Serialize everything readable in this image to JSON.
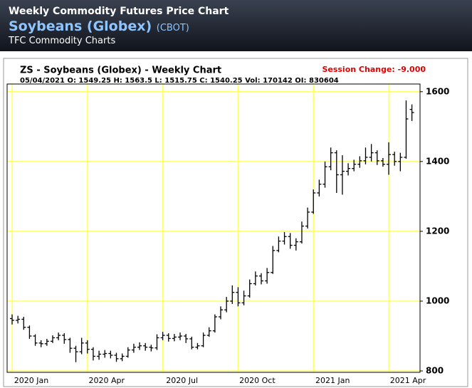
{
  "header": {
    "title": "Weekly Commodity Futures Price Chart",
    "commodity": "Soybeans (Globex)",
    "exchange": "(CBOT)",
    "source": "TFC Commodity Charts"
  },
  "chart_data": {
    "type": "ohlc",
    "title": "ZS - Soybeans (Globex) - Weekly Chart",
    "subtitle": "05/04/2021 O: 1549.25 H: 1563.5 L: 1515.75 C: 1540.25 Vol: 170142 OI: 830604",
    "annotation": "Session Change: -9.000",
    "color": "#000000",
    "grid_color": "#ffff66",
    "grid": true,
    "open": [
      950,
      945,
      948,
      925,
      900,
      880,
      878,
      885,
      895,
      902,
      890,
      865,
      855,
      880,
      862,
      842,
      848,
      850,
      845,
      835,
      842,
      860,
      868,
      872,
      868,
      866,
      895,
      902,
      893,
      897,
      900,
      892,
      868,
      872,
      902,
      915,
      955,
      975,
      1000,
      1025,
      995,
      1015,
      1050,
      1072,
      1058,
      1082,
      1145,
      1172,
      1185,
      1160,
      1170,
      1215,
      1255,
      1310,
      1335,
      1385,
      1425,
      1362,
      1372,
      1380,
      1392,
      1402,
      1412,
      1425,
      1402,
      1392,
      1420,
      1400,
      1412,
      1549.25
    ],
    "high": [
      962,
      958,
      955,
      930,
      905,
      888,
      892,
      902,
      910,
      908,
      895,
      872,
      895,
      888,
      868,
      858,
      860,
      858,
      852,
      850,
      868,
      878,
      882,
      880,
      875,
      905,
      912,
      908,
      906,
      910,
      906,
      898,
      880,
      910,
      925,
      962,
      985,
      1012,
      1045,
      1040,
      1030,
      1062,
      1085,
      1080,
      1095,
      1158,
      1185,
      1198,
      1195,
      1180,
      1228,
      1268,
      1320,
      1348,
      1400,
      1440,
      1432,
      1418,
      1395,
      1405,
      1415,
      1440,
      1450,
      1432,
      1410,
      1455,
      1428,
      1425,
      1575,
      1563.5
    ],
    "low": [
      933,
      936,
      918,
      892,
      872,
      868,
      872,
      880,
      888,
      878,
      852,
      825,
      848,
      850,
      830,
      832,
      838,
      836,
      826,
      828,
      838,
      852,
      860,
      858,
      856,
      860,
      888,
      884,
      885,
      888,
      880,
      862,
      862,
      868,
      898,
      910,
      948,
      968,
      992,
      985,
      988,
      1010,
      1045,
      1048,
      1050,
      1078,
      1140,
      1162,
      1150,
      1145,
      1165,
      1208,
      1250,
      1300,
      1325,
      1375,
      1310,
      1305,
      1360,
      1372,
      1382,
      1392,
      1400,
      1390,
      1385,
      1362,
      1388,
      1372,
      1408,
      1515.75
    ],
    "close": [
      945,
      948,
      925,
      900,
      880,
      878,
      885,
      895,
      902,
      890,
      865,
      855,
      880,
      862,
      842,
      848,
      850,
      845,
      835,
      842,
      860,
      868,
      872,
      868,
      866,
      895,
      902,
      893,
      897,
      900,
      892,
      868,
      872,
      902,
      915,
      955,
      975,
      1000,
      1025,
      995,
      1015,
      1050,
      1072,
      1058,
      1082,
      1145,
      1172,
      1185,
      1160,
      1170,
      1215,
      1255,
      1310,
      1335,
      1385,
      1425,
      1362,
      1372,
      1380,
      1392,
      1402,
      1412,
      1425,
      1402,
      1392,
      1420,
      1400,
      1412,
      1522,
      1540.25
    ],
    "xlim": [
      -0.86,
      70.4
    ],
    "xticks": [
      {
        "value": 0,
        "label": "2020 Jan"
      },
      {
        "value": 13,
        "label": "2020 Apr"
      },
      {
        "value": 26,
        "label": "2020 Jul"
      },
      {
        "value": 39,
        "label": "2020 Oct"
      },
      {
        "value": 52,
        "label": "2021 Jan"
      },
      {
        "value": 65,
        "label": "2021 Apr"
      }
    ],
    "ylim": [
      796,
      1622
    ],
    "yticks": [
      800,
      1000,
      1200,
      1400,
      1600
    ]
  }
}
